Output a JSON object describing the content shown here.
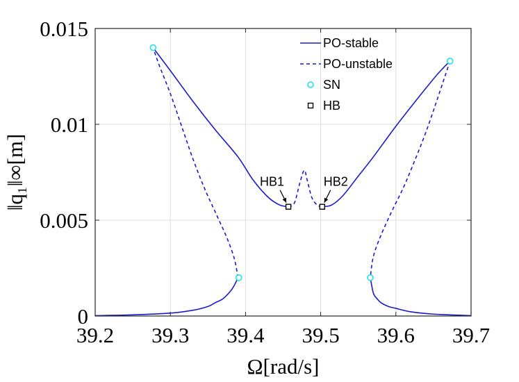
{
  "chart_data": {
    "type": "line",
    "title": "",
    "xlabel": "Ω[rad/s]",
    "ylabel": "‖q₁‖∞[m]",
    "xlim": [
      39.2,
      39.7
    ],
    "ylim": [
      0,
      0.015
    ],
    "xticks": [
      39.2,
      39.3,
      39.4,
      39.5,
      39.6,
      39.7
    ],
    "xtick_labels": [
      "39.2",
      "39.3",
      "39.4",
      "39.5",
      "39.6",
      "39.7"
    ],
    "yticks": [
      0,
      0.005,
      0.01,
      0.015
    ],
    "ytick_labels": [
      "0",
      "0.005",
      "0.01",
      "0.015"
    ],
    "grid": true,
    "legend_position": "top-right",
    "colors": {
      "line": "#1a1acc",
      "sn": "#22e0e8",
      "hb": "#000000"
    },
    "legend": [
      {
        "label": "PO-stable",
        "style": "solid-line"
      },
      {
        "label": "PO-unstable",
        "style": "dashed-line"
      },
      {
        "label": "SN",
        "style": "cyan-circle"
      },
      {
        "label": "HB",
        "style": "black-square"
      }
    ],
    "series": [
      {
        "name": "PO-stable (low branch, left)",
        "style": "solid",
        "points": [
          [
            39.2,
            2e-05
          ],
          [
            39.25,
            6e-05
          ],
          [
            39.3,
            0.00015
          ],
          [
            39.33,
            0.0003
          ],
          [
            39.35,
            0.0005
          ],
          [
            39.36,
            0.0007
          ],
          [
            39.37,
            0.0009
          ],
          [
            39.38,
            0.0013
          ],
          [
            39.385,
            0.0016
          ],
          [
            39.39,
            0.002
          ]
        ]
      },
      {
        "name": "PO-unstable (left)",
        "style": "dashed",
        "points": [
          [
            39.39,
            0.002
          ],
          [
            39.385,
            0.003
          ],
          [
            39.375,
            0.0041
          ],
          [
            39.36,
            0.0054
          ],
          [
            39.345,
            0.0067
          ],
          [
            39.33,
            0.0082
          ],
          [
            39.315,
            0.0099
          ],
          [
            39.3,
            0.0116
          ],
          [
            39.285,
            0.0131
          ],
          [
            39.277,
            0.014
          ]
        ]
      },
      {
        "name": "PO-stable (left high branch)",
        "style": "solid",
        "points": [
          [
            39.277,
            0.014
          ],
          [
            39.3,
            0.0128
          ],
          [
            39.33,
            0.0112
          ],
          [
            39.36,
            0.0097
          ],
          [
            39.39,
            0.0083
          ],
          [
            39.41,
            0.0071
          ],
          [
            39.43,
            0.0062
          ],
          [
            39.445,
            0.0058
          ],
          [
            39.457,
            0.0057
          ]
        ]
      },
      {
        "name": "PO-unstable (center)",
        "style": "dashed",
        "points": [
          [
            39.457,
            0.0057
          ],
          [
            39.465,
            0.0059
          ],
          [
            39.472,
            0.0069
          ],
          [
            39.478,
            0.0076
          ],
          [
            39.482,
            0.0071
          ],
          [
            39.488,
            0.0062
          ],
          [
            39.495,
            0.0058
          ],
          [
            39.502,
            0.0057
          ]
        ]
      },
      {
        "name": "PO-stable (right high branch)",
        "style": "solid",
        "points": [
          [
            39.502,
            0.0057
          ],
          [
            39.515,
            0.0058
          ],
          [
            39.53,
            0.0063
          ],
          [
            39.55,
            0.0073
          ],
          [
            39.57,
            0.0083
          ],
          [
            39.6,
            0.0099
          ],
          [
            39.63,
            0.0114
          ],
          [
            39.655,
            0.0126
          ],
          [
            39.672,
            0.0133
          ]
        ]
      },
      {
        "name": "PO-unstable (right)",
        "style": "dashed",
        "points": [
          [
            39.672,
            0.0133
          ],
          [
            39.655,
            0.0113
          ],
          [
            39.64,
            0.0096
          ],
          [
            39.625,
            0.0081
          ],
          [
            39.61,
            0.0067
          ],
          [
            39.595,
            0.0055
          ],
          [
            39.58,
            0.0042
          ],
          [
            39.57,
            0.0031
          ],
          [
            39.566,
            0.002
          ]
        ]
      },
      {
        "name": "PO-stable (low branch, right)",
        "style": "solid",
        "points": [
          [
            39.566,
            0.002
          ],
          [
            39.57,
            0.0012
          ],
          [
            39.575,
            0.0009
          ],
          [
            39.58,
            0.0007
          ],
          [
            39.59,
            0.0005
          ],
          [
            39.6,
            0.0004
          ],
          [
            39.62,
            0.00022
          ],
          [
            39.65,
            0.0001
          ],
          [
            39.7,
            2e-05
          ]
        ]
      }
    ],
    "sn_points": [
      [
        39.277,
        0.014
      ],
      [
        39.391,
        0.002
      ],
      [
        39.672,
        0.0133
      ],
      [
        39.566,
        0.002
      ]
    ],
    "hb_points": [
      {
        "x": 39.457,
        "y": 0.0057,
        "label": "HB1"
      },
      {
        "x": 39.502,
        "y": 0.0057,
        "label": "HB2"
      }
    ]
  }
}
